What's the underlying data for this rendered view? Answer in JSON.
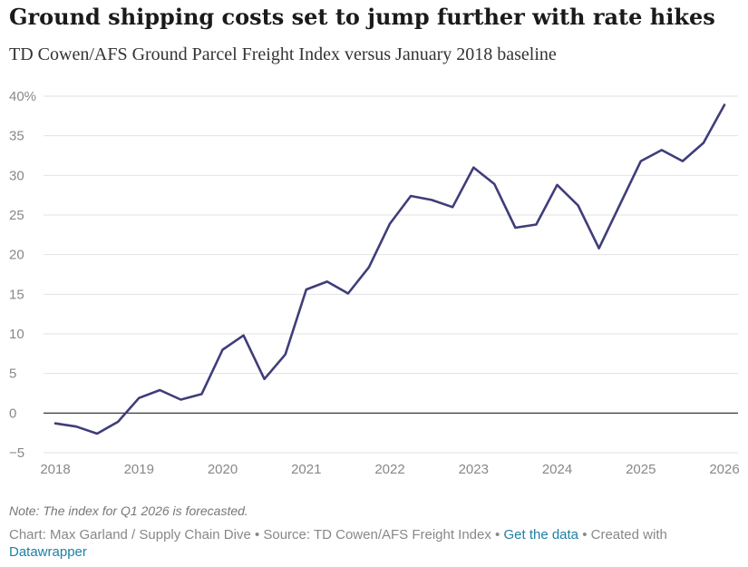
{
  "header": {
    "title": "Ground shipping costs set to jump further with rate hikes",
    "subtitle": "TD Cowen/AFS Ground Parcel Freight Index versus January 2018 baseline"
  },
  "chart_data": {
    "type": "line",
    "title": "Ground shipping costs set to jump further with rate hikes",
    "subtitle": "TD Cowen/AFS Ground Parcel Freight Index versus January 2018 baseline",
    "xlabel": "",
    "ylabel": "",
    "xlim": [
      2018,
      2026
    ],
    "ylim": [
      -5,
      40
    ],
    "x_ticks": [
      {
        "value": 2018,
        "label": "2018"
      },
      {
        "value": 2019,
        "label": "2019"
      },
      {
        "value": 2020,
        "label": "2020"
      },
      {
        "value": 2021,
        "label": "2021"
      },
      {
        "value": 2022,
        "label": "2022"
      },
      {
        "value": 2023,
        "label": "2023"
      },
      {
        "value": 2024,
        "label": "2024"
      },
      {
        "value": 2025,
        "label": "2025"
      },
      {
        "value": 2026,
        "label": "2026"
      }
    ],
    "y_ticks": [
      {
        "value": 40,
        "label": "40%"
      },
      {
        "value": 35,
        "label": "35"
      },
      {
        "value": 30,
        "label": "30"
      },
      {
        "value": 25,
        "label": "25"
      },
      {
        "value": 20,
        "label": "20"
      },
      {
        "value": 15,
        "label": "15"
      },
      {
        "value": 10,
        "label": "10"
      },
      {
        "value": 5,
        "label": "5"
      },
      {
        "value": 0,
        "label": "0"
      },
      {
        "value": -5,
        "label": "−5"
      }
    ],
    "grid": true,
    "zero_line": true,
    "line_color": "#3f3d7a",
    "series": [
      {
        "x": [
          "Q1 2018",
          "Q2 2018",
          "Q3 2018",
          "Q4 2018",
          "Q1 2019",
          "Q2 2019",
          "Q3 2019",
          "Q4 2019",
          "Q1 2020",
          "Q2 2020",
          "Q3 2020",
          "Q4 2020",
          "Q1 2021",
          "Q2 2021",
          "Q3 2021",
          "Q4 2021",
          "Q1 2022",
          "Q2 2022",
          "Q3 2022",
          "Q4 2022",
          "Q1 2023",
          "Q2 2023",
          "Q3 2023",
          "Q4 2023",
          "Q1 2024",
          "Q2 2024",
          "Q3 2024",
          "Q4 2024",
          "Q1 2025",
          "Q2 2025",
          "Q3 2025",
          "Q4 2025",
          "Q1 2026"
        ],
        "values": [
          -1.3,
          -1.7,
          -2.6,
          -1.1,
          1.9,
          2.9,
          1.7,
          2.4,
          8.0,
          9.8,
          4.3,
          7.4,
          15.6,
          16.6,
          15.1,
          18.4,
          23.9,
          27.4,
          26.9,
          26.0,
          31.0,
          28.9,
          23.4,
          23.8,
          28.8,
          26.2,
          20.8,
          26.3,
          31.8,
          33.2,
          31.8,
          34.1,
          38.9
        ]
      }
    ]
  },
  "footer": {
    "note": "Note: The index for Q1 2026 is forecasted.",
    "credit_text": "Chart: Max Garland / Supply Chain Dive • Source: TD Cowen/AFS Freight Index • ",
    "get_data_label": "Get the data",
    "created_with_text": " • Created with ",
    "datawrapper_label": "Datawrapper"
  }
}
